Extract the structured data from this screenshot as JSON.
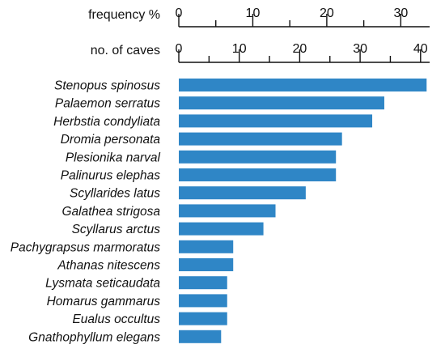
{
  "chart_data": {
    "type": "bar",
    "orientation": "horizontal",
    "axes": [
      {
        "title": "frequency %",
        "ticks": [
          0,
          10,
          20,
          30
        ],
        "minor_ticks": [
          5,
          15,
          25
        ],
        "range": [
          0,
          33.9
        ]
      },
      {
        "title": "no. of caves",
        "ticks": [
          0,
          10,
          20,
          30,
          40
        ],
        "minor_ticks": [
          5,
          15,
          25,
          35
        ],
        "range": [
          0,
          41.5
        ]
      }
    ],
    "value_axis": "no. of caves",
    "categories": [
      "Stenopus spinosus",
      "Palaemon serratus",
      "Herbstia condyliata",
      "Dromia personata",
      "Plesionika narval",
      "Palinurus elephas",
      "Scyllarides latus",
      "Galathea strigosa",
      "Scyllarus arctus",
      "Pachygrapsus marmoratus",
      "Athanas nitescens",
      "Lysmata seticaudata",
      "Homarus gammarus",
      "Eualus occultus",
      "Gnathophyllum elegans"
    ],
    "values": [
      41,
      34,
      32,
      27,
      26,
      26,
      21,
      16,
      14,
      9,
      9,
      8,
      8,
      8,
      7
    ],
    "bar_color": "#2f86c6",
    "grid": false,
    "legend": "none"
  }
}
